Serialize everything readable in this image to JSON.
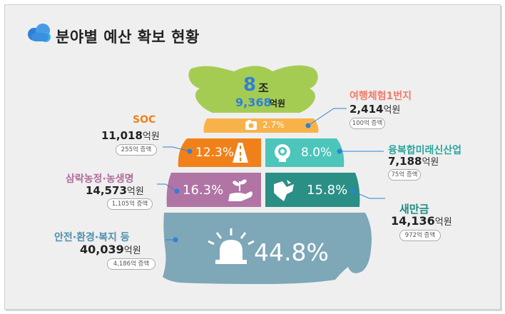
{
  "title": "분야별 예산 확보 현황",
  "total": {
    "big": "8",
    "unit1": "조",
    "rest": "9,368",
    "unit2": "억원"
  },
  "items": [
    {
      "name": "여행체험1번지",
      "amount": "2,414",
      "unit": "억원",
      "increase": "100억 증액",
      "percent": "2.7%",
      "color": "#f47a68",
      "fill": "#f7b34a",
      "icon": "camera-icon"
    },
    {
      "name": "SOC",
      "amount": "11,018",
      "unit": "억원",
      "increase": "255억 증액",
      "percent": "12.3%",
      "color": "#f0811a",
      "fill": "#f0811a",
      "icon": "road-icon"
    },
    {
      "name": "융복합미래신산업",
      "amount": "7,188",
      "unit": "억원",
      "increase": "75억 증액",
      "percent": "8.0%",
      "color": "#2aa59e",
      "fill": "#4cc5bb",
      "icon": "gear-head-icon"
    },
    {
      "name": "삼락농정·농생명",
      "amount": "14,573",
      "unit": "억원",
      "increase": "1,105억 증액",
      "percent": "16.3%",
      "color": "#b26d9c",
      "fill": "#b074a5",
      "icon": "sprout-hand-icon"
    },
    {
      "name": "새만금",
      "amount": "14,136",
      "unit": "억원",
      "increase": "972억 증액",
      "percent": "15.8%",
      "color": "#1f8b7f",
      "fill": "#2a8f85",
      "icon": "map-icon"
    },
    {
      "name": "안전·환경·복지 등",
      "amount": "40,039",
      "unit": "억원",
      "increase": "4,186억 증액",
      "percent": "44.8%",
      "color": "#4e8faf",
      "fill": "#7ea7b8",
      "icon": "siren-icon"
    }
  ],
  "chart_data": {
    "type": "pie",
    "categories": [
      "여행체험1번지",
      "SOC",
      "융복합미래신산업",
      "삼락농정·농생명",
      "새만금",
      "안전·환경·복지 등"
    ],
    "values": [
      2414,
      11018,
      7188,
      14573,
      14136,
      40039
    ],
    "percent": [
      2.7,
      12.3,
      8.0,
      16.3,
      15.8,
      44.8
    ],
    "increase": [
      100,
      255,
      75,
      1105,
      972,
      4186
    ],
    "total": 89368
  }
}
